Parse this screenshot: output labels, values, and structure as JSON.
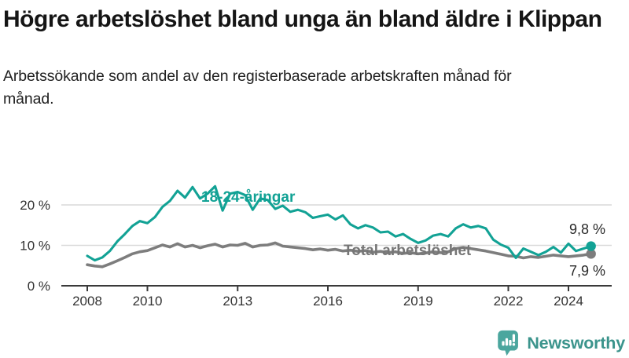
{
  "header": {
    "title": "Högre arbetslöshet bland unga än bland äldre i Klippan",
    "subtitle": "Arbetssökande som andel av den registerbaserade arbetskraften månad för månad."
  },
  "chart_data": {
    "type": "line",
    "title": "Högre arbetslöshet bland unga än bland äldre i Klippan",
    "xlabel": "",
    "ylabel": "",
    "x_unit": "year (monthly data)",
    "x_start": 2008,
    "x_step": 0.25,
    "xlim": [
      2007.15,
      2025.45
    ],
    "ylim": [
      0,
      28
    ],
    "grid": "horizontal",
    "legend_position": "inline-labels",
    "x_ticks": [
      {
        "year": 2008,
        "label": "2008"
      },
      {
        "year": 2010,
        "label": "2010"
      },
      {
        "year": 2013,
        "label": "2013"
      },
      {
        "year": 2016,
        "label": "2016"
      },
      {
        "year": 2019,
        "label": "2019"
      },
      {
        "year": 2022,
        "label": "2022"
      },
      {
        "year": 2024,
        "label": "2024"
      }
    ],
    "y_ticks": [
      {
        "value": 0,
        "label": "0 %"
      },
      {
        "value": 10,
        "label": "10 %"
      },
      {
        "value": 20,
        "label": "20 %"
      }
    ],
    "series": [
      {
        "name": "18-24-åringar",
        "color": "#12a295",
        "end_value": 9.8,
        "end_label": "9,8 %",
        "values": [
          7.4,
          6.3,
          7.0,
          8.6,
          11.0,
          12.8,
          14.8,
          16.0,
          15.5,
          17.0,
          19.5,
          21.0,
          23.5,
          21.8,
          24.4,
          21.6,
          22.8,
          24.6,
          18.6,
          22.8,
          23.2,
          22.4,
          18.8,
          21.6,
          21.2,
          19.0,
          19.8,
          18.3,
          18.8,
          18.2,
          16.8,
          17.2,
          17.6,
          16.4,
          17.4,
          15.2,
          14.2,
          15.0,
          14.4,
          13.2,
          13.4,
          12.2,
          12.8,
          11.6,
          10.6,
          11.2,
          12.4,
          12.8,
          12.2,
          14.2,
          15.2,
          14.4,
          14.8,
          14.2,
          11.4,
          10.2,
          9.4,
          6.9,
          9.2,
          8.4,
          7.6,
          8.4,
          9.6,
          8.2,
          10.4,
          8.6,
          9.2,
          9.8
        ]
      },
      {
        "name": "Total arbetslöshet",
        "color": "#7d7d7d",
        "end_value": 7.9,
        "end_label": "7,9 %",
        "values": [
          5.2,
          4.9,
          4.7,
          5.4,
          6.2,
          7.0,
          7.9,
          8.4,
          8.7,
          9.4,
          10.1,
          9.6,
          10.4,
          9.6,
          10.0,
          9.4,
          9.9,
          10.3,
          9.6,
          10.1,
          10.0,
          10.5,
          9.6,
          10.0,
          10.1,
          10.6,
          9.8,
          9.6,
          9.4,
          9.2,
          8.9,
          9.1,
          8.8,
          9.0,
          8.6,
          8.8,
          8.5,
          8.7,
          8.3,
          8.5,
          8.2,
          8.4,
          8.0,
          8.2,
          7.9,
          8.1,
          8.4,
          8.2,
          8.4,
          9.2,
          9.5,
          9.2,
          8.9,
          8.6,
          8.2,
          7.8,
          7.4,
          7.3,
          6.9,
          7.2,
          7.0,
          7.3,
          7.6,
          7.4,
          7.2,
          7.4,
          7.6,
          7.9
        ]
      }
    ]
  },
  "colors": {
    "young_line": "#12a295",
    "total_line": "#7d7d7d",
    "gridline": "#d9d9d9",
    "axis": "#3a3a3a",
    "axis_text": "#333333",
    "logo_icon": "#4ba69e",
    "logo_text": "#3b948c"
  },
  "footer": {
    "brand": "Newsworthy"
  }
}
